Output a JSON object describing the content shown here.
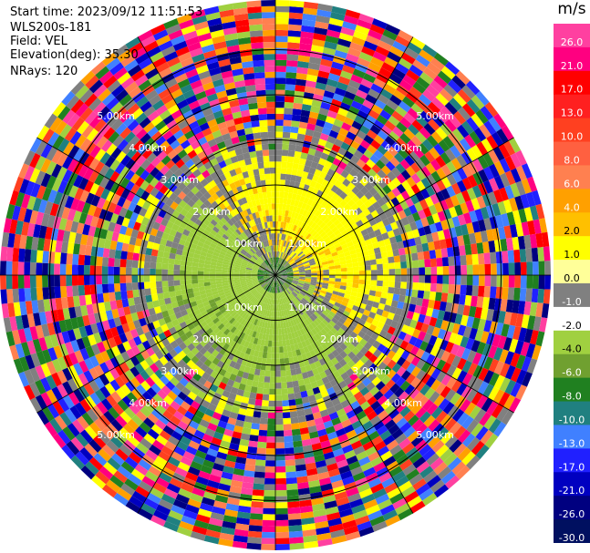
{
  "header": {
    "start_time": "Start time: 2023/09/12 11:51:53",
    "instrument": "WLS200s-181",
    "field": "Field: VEL",
    "elevation": "Elevation(deg): 35.30",
    "nrays": "NRays: 120"
  },
  "colorbar": {
    "unit": "m/s",
    "ticks": [
      "26.0",
      "21.0",
      "17.0",
      "13.0",
      "10.0",
      "8.0",
      "6.0",
      "4.0",
      "2.0",
      "1.0",
      "0.0",
      "-1.0",
      "-2.0",
      "-4.0",
      "-6.0",
      "-8.0",
      "-10.0",
      "-13.0",
      "-17.0",
      "-21.0",
      "-26.0",
      "-30.0"
    ],
    "colors": [
      "#ff40a0",
      "#ff0080",
      "#ff0000",
      "#ff2020",
      "#ff4020",
      "#ff6040",
      "#ff8050",
      "#ffa000",
      "#ffc000",
      "#ffff00",
      "#ffff99",
      "#808080",
      "#ffffff",
      "#a0d040",
      "#70a030",
      "#208020",
      "#208080",
      "#4080ff",
      "#2020ff",
      "#0000c0",
      "#000080",
      "#001060",
      "#00003c"
    ]
  },
  "chart_data": {
    "type": "ppi",
    "field": "VEL",
    "units": "m/s",
    "nrays": 120,
    "elevation_deg": 35.3,
    "range_rings_km": [
      1,
      2,
      3,
      4,
      5
    ],
    "range_labels": [
      "1.00km",
      "2.00km",
      "3.00km",
      "4.00km",
      "5.00km"
    ],
    "max_range_km": 6.1,
    "value_min": -30,
    "value_max": 30
  }
}
